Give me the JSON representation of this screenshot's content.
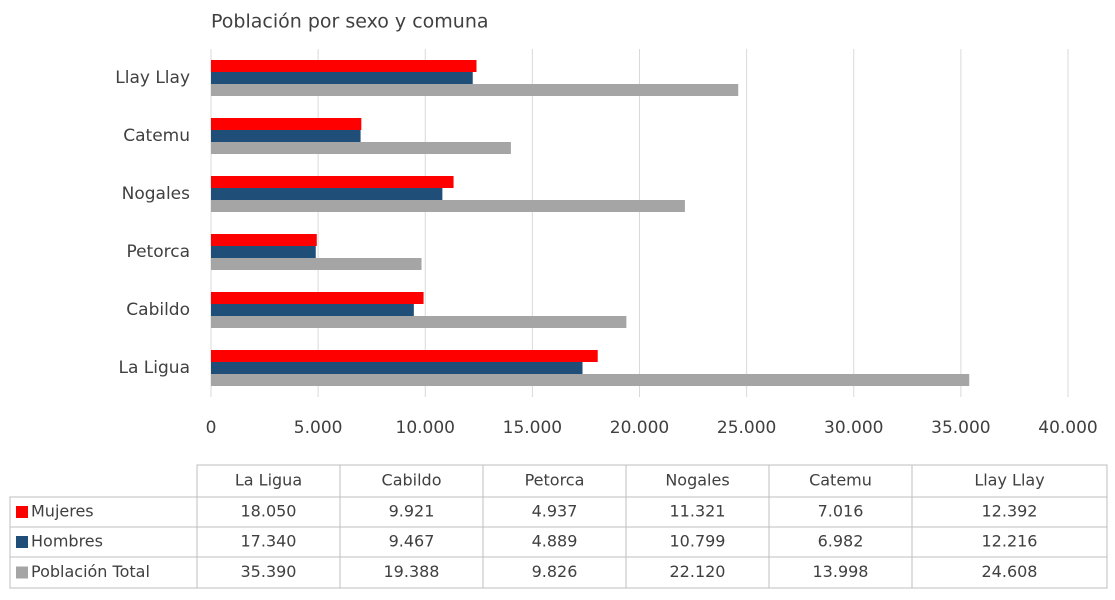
{
  "chart_data": {
    "type": "bar",
    "orientation": "horizontal",
    "title": "Población por sexo y comuna",
    "categories": [
      "La Ligua",
      "Cabildo",
      "Petorca",
      "Nogales",
      "Catemu",
      "Llay Llay"
    ],
    "series": [
      {
        "name": "Mujeres",
        "color": "#ff0000",
        "values": [
          18050,
          9921,
          4937,
          11321,
          7016,
          12392
        ],
        "value_labels": [
          "18.050",
          "9.921",
          "4.937",
          "11.321",
          "7.016",
          "12.392"
        ]
      },
      {
        "name": "Hombres",
        "color": "#1f4e79",
        "values": [
          17340,
          9467,
          4889,
          10799,
          6982,
          12216
        ],
        "value_labels": [
          "17.340",
          "9.467",
          "4.889",
          "10.799",
          "6.982",
          "12.216"
        ]
      },
      {
        "name": "Población Total",
        "color": "#a5a5a5",
        "values": [
          35390,
          19388,
          9826,
          22120,
          13998,
          24608
        ],
        "value_labels": [
          "35.390",
          "19.388",
          "9.826",
          "22.120",
          "13.998",
          "24.608"
        ]
      }
    ],
    "xlim": [
      0,
      40000
    ],
    "xticks": [
      0,
      {
        "value": 5000,
        "label": "5.000"
      },
      {
        "value": 10000,
        "label": "10.000"
      },
      {
        "value": 15000,
        "label": "15.000"
      },
      {
        "value": 20000,
        "label": "20.000"
      },
      {
        "value": 25000,
        "label": "25.000"
      },
      {
        "value": 30000,
        "label": "30.000"
      },
      {
        "value": 35000,
        "label": "35.000"
      },
      {
        "value": 40000,
        "label": "40.000"
      }
    ],
    "grid": true,
    "legend": "table"
  }
}
